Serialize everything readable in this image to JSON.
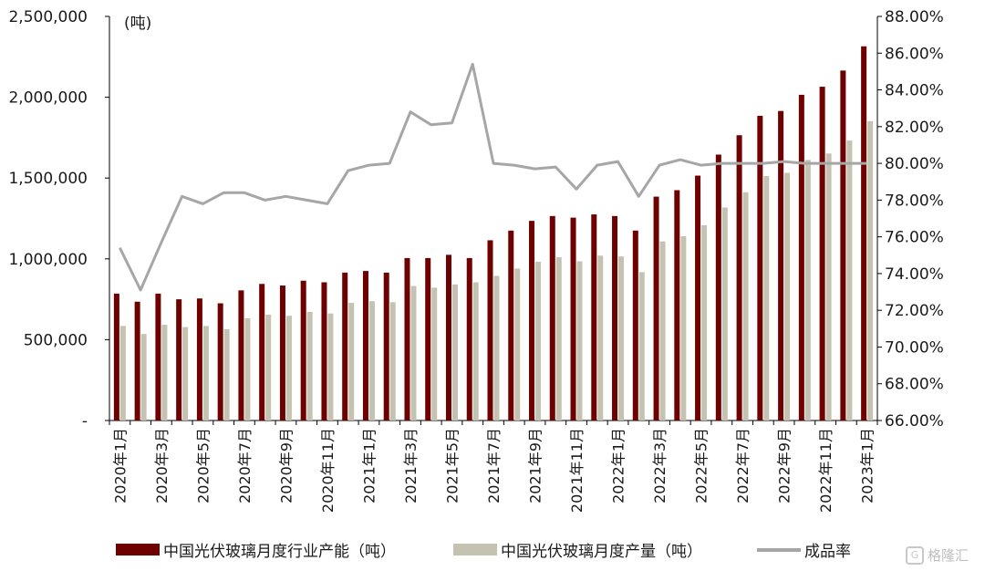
{
  "chart_data": {
    "type": "bar+line",
    "unit_label": "(吨)",
    "x": [
      "2020年1月",
      "2020年2月",
      "2020年3月",
      "2020年4月",
      "2020年5月",
      "2020年6月",
      "2020年7月",
      "2020年8月",
      "2020年9月",
      "2020年10月",
      "2020年11月",
      "2020年12月",
      "2021年1月",
      "2021年2月",
      "2021年3月",
      "2021年4月",
      "2021年5月",
      "2021年6月",
      "2021年7月",
      "2021年8月",
      "2021年9月",
      "2021年10月",
      "2021年11月",
      "2021年12月",
      "2022年1月",
      "2022年2月",
      "2022年3月",
      "2022年4月",
      "2022年5月",
      "2022年6月",
      "2022年7月",
      "2022年8月",
      "2022年9月",
      "2022年10月",
      "2022年11月",
      "2022年12月",
      "2023年1月"
    ],
    "x_tick_labels": [
      "2020年1月",
      "2020年3月",
      "2020年5月",
      "2020年7月",
      "2020年9月",
      "2020年11月",
      "2021年1月",
      "2021年3月",
      "2021年5月",
      "2021年7月",
      "2021年9月",
      "2021年11月",
      "2022年1月",
      "2022年3月",
      "2022年5月",
      "2022年7月",
      "2022年9月",
      "2022年11月",
      "2023年1月"
    ],
    "y_left": {
      "ylim": [
        0,
        2500000
      ],
      "ticks": [
        "-",
        "500,000",
        "1,000,000",
        "1,500,000",
        "2,000,000",
        "2,500,000"
      ]
    },
    "y_right": {
      "ylim": [
        66,
        88
      ],
      "ticks": [
        "66.00%",
        "68.00%",
        "70.00%",
        "72.00%",
        "74.00%",
        "76.00%",
        "78.00%",
        "80.00%",
        "82.00%",
        "84.00%",
        "86.00%",
        "88.00%"
      ]
    },
    "series": [
      {
        "name": "中国光伏玻璃月度行业产能（吨）",
        "type": "bar",
        "axis": "left",
        "color": "#6e0000",
        "values": [
          785000,
          735000,
          785000,
          750000,
          755000,
          725000,
          805000,
          845000,
          835000,
          865000,
          855000,
          915000,
          925000,
          915000,
          1005000,
          1005000,
          1025000,
          1005000,
          1115000,
          1175000,
          1235000,
          1265000,
          1255000,
          1275000,
          1265000,
          1175000,
          1385000,
          1425000,
          1515000,
          1645000,
          1765000,
          1885000,
          1915000,
          2015000,
          2065000,
          2165000,
          2315000
        ]
      },
      {
        "name": "中国光伏玻璃月度产量（吨）",
        "type": "bar",
        "axis": "left",
        "color": "#c4c3b1",
        "values": [
          585000,
          535000,
          592000,
          578000,
          585000,
          565000,
          632000,
          655000,
          648000,
          672000,
          662000,
          728000,
          738000,
          732000,
          832000,
          822000,
          842000,
          855000,
          895000,
          940000,
          982000,
          1010000,
          985000,
          1020000,
          1015000,
          918000,
          1108000,
          1140000,
          1208000,
          1318000,
          1412000,
          1512000,
          1532000,
          1612000,
          1652000,
          1732000,
          1852000
        ]
      },
      {
        "name": "成品率",
        "type": "line",
        "axis": "right",
        "color": "#a6a6a6",
        "values": [
          75.4,
          73.1,
          75.7,
          78.2,
          77.8,
          78.4,
          78.4,
          78.0,
          78.2,
          78.0,
          77.8,
          79.6,
          79.9,
          80.0,
          82.8,
          82.1,
          82.2,
          85.4,
          80.0,
          79.9,
          79.7,
          79.8,
          78.6,
          79.9,
          80.1,
          78.2,
          79.9,
          80.2,
          79.9,
          80.0,
          80.0,
          80.0,
          80.1,
          80.0,
          80.0,
          80.0,
          80.0
        ]
      }
    ],
    "legend_position": "bottom"
  },
  "watermark": {
    "icon": "G",
    "text": "格隆汇"
  }
}
